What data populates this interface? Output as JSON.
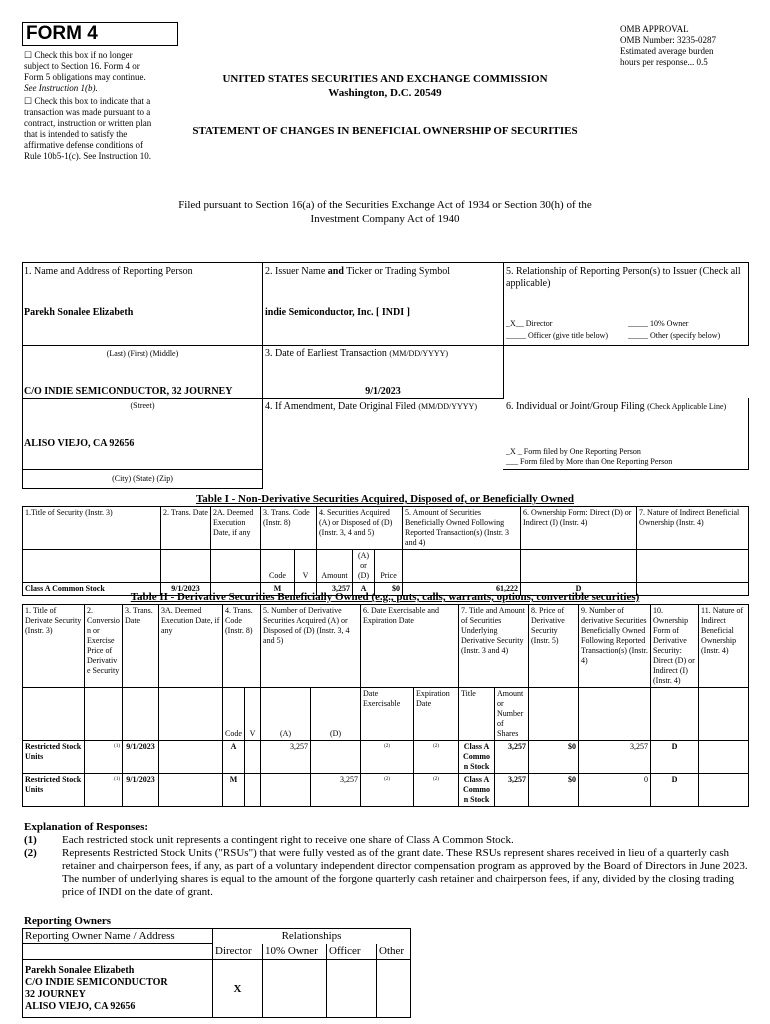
{
  "header": {
    "form_title": "FORM 4",
    "check_16": "Check this box if no longer subject to Section 16. Form 4 or Form 5 obligations may continue.",
    "check_16_see": "See Instruction 1(b).",
    "check_10b5": "Check this box to indicate that a transaction was made pursuant to a contract, instruction or written plan that is intended to satisfy the affirmative defense conditions of Rule 10b5-1(c). See Instruction 10.",
    "omb": [
      "OMB APPROVAL",
      "OMB Number: 3235-0287",
      "Estimated average burden",
      "hours per response... 0.5"
    ],
    "agency": "UNITED STATES SECURITIES AND EXCHANGE COMMISSION",
    "city": "Washington, D.C. 20549",
    "statement": "STATEMENT OF CHANGES IN BENEFICIAL OWNERSHIP OF SECURITIES",
    "filed_1": "Filed pursuant to Section 16(a) of the Securities Exchange Act of 1934 or Section 30(h) of the",
    "filed_2": "Investment Company Act of 1940"
  },
  "reporting": {
    "l1": "1. Name and Address of Reporting Person",
    "name": "Parekh Sonalee Elizabeth",
    "name_hint": "(Last)  (First)  (Middle)",
    "street": "C/O INDIE SEMICONDUCTOR, 32 JOURNEY",
    "street_hint": "(Street)",
    "city": "ALISO VIEJO, CA 92656",
    "city_hint": "(City)  (State)  (Zip)",
    "l2a": "2. Issuer Name ",
    "l2b": "and",
    "l2c": " Ticker or Trading Symbol",
    "issuer": "indie Semiconductor, Inc. [ INDI ]",
    "l3": "3. Date of Earliest Transaction ",
    "l3s": "(MM/DD/YYYY)",
    "earliest": "9/1/2023",
    "l4": "4. If Amendment, Date Original Filed ",
    "l4s": "(MM/DD/YYYY)",
    "l5": "5. Relationship of Reporting Person(s) to Issuer (Check all applicable)",
    "rel_director": "_X__ Director",
    "rel_10": "_____ 10% Owner",
    "rel_officer": "_____ Officer (give title below)",
    "rel_other": "_____ Other (specify below)",
    "l6": "6. Individual or Joint/Group Filing ",
    "l6s": "(Check Applicable Line)",
    "f_one": "_X _ Form filed by One Reporting Person",
    "f_more": "___ Form filed by More than One Reporting Person"
  },
  "table1": {
    "title": "Table I - Non-Derivative Securities Acquired, Disposed of, or Beneficially Owned",
    "headers": [
      "1.Title of Security (Instr. 3)",
      "2. Trans. Date",
      "2A. Deemed Execution Date, if any",
      "3. Trans. Code (Instr. 8)",
      "4. Securities Acquired (A) or Disposed of (D) (Instr. 3, 4 and 5)",
      "5. Amount of Securities Beneficially Owned Following Reported Transaction(s) (Instr. 3 and 4)",
      "6. Ownership Form: Direct (D) or Indirect (I) (Instr. 4)",
      "7. Nature of Indirect Beneficial Ownership (Instr. 4)"
    ],
    "sub": [
      "Code",
      "V",
      "Amount",
      "(A) or (D)",
      "Price"
    ],
    "rows": [
      [
        "Class A Common Stock",
        "9/1/2023",
        "",
        "M",
        "",
        "3,257",
        "A",
        "$0",
        "61,222",
        "D",
        ""
      ]
    ]
  },
  "table2": {
    "title": "Table II - Derivative Securities Beneficially Owned (e.g., puts, calls, warrants, options, convertible securities)",
    "headers": [
      "1. Title of Derivate Security (Instr. 3)",
      "2. Conversion or Exercise Price of Derivative Security",
      "3. Trans. Date",
      "3A. Deemed Execution Date, if any",
      "4. Trans. Code (Instr. 8)",
      "5. Number of Derivative Securities Acquired (A) or Disposed of (D) (Instr. 3, 4 and 5)",
      "6. Date Exercisable and Expiration Date",
      "7. Title and Amount of Securities Underlying Derivative Security (Instr. 3 and 4)",
      "8. Price of Derivative Security (Instr. 5)",
      "9. Number of derivative Securities Beneficially Owned Following Reported Transaction(s) (Instr. 4)",
      "10. Ownership Form of Derivative Security: Direct (D) or Indirect (I) (Instr. 4)",
      "11. Nature of Indirect Beneficial Ownership (Instr. 4)"
    ],
    "sub": [
      "Code",
      "V",
      "(A)",
      "(D)",
      "Date Exercisable",
      "Expiration Date",
      "Title",
      "Amount or Number of Shares"
    ],
    "rows": [
      [
        "Restricted Stock Units",
        "(1)",
        "9/1/2023",
        "",
        "A",
        "",
        "3,257",
        "",
        "(2)",
        "(2)",
        "Class A Common Stock",
        "3,257",
        "$0",
        "3,257",
        "D",
        ""
      ],
      [
        "Restricted Stock Units",
        "(1)",
        "9/1/2023",
        "",
        "M",
        "",
        "",
        "3,257",
        "(2)",
        "(2)",
        "Class A Common Stock",
        "3,257",
        "$0",
        "0",
        "D",
        ""
      ]
    ]
  },
  "explanation": {
    "title": "Explanation of Responses:",
    "items": [
      {
        "n": "(1)",
        "t": "Each restricted stock unit represents a contingent right to receive one share of Class A Common Stock."
      },
      {
        "n": "(2)",
        "t": "Represents Restricted Stock Units (\"RSUs\") that were fully vested as of the grant date. These RSUs represent shares received in lieu of a quarterly cash retainer and chairperson fees, if any, as part of a voluntary independent director compensation program as approved by the Board of Directors in June 2023. The number of underlying shares is equal to the amount of the forgone quarterly cash retainer and chairperson fees, if any, divided by the closing trading price of INDI on the date of grant."
      }
    ]
  },
  "owners": {
    "title": "Reporting Owners",
    "col_name": "Reporting Owner Name / Address",
    "col_rel": "Relationships",
    "cols": [
      "Director",
      "10% Owner",
      "Officer",
      "Other"
    ],
    "rows": [
      {
        "name": [
          "Parekh Sonalee Elizabeth",
          "C/O INDIE SEMICONDUCTOR",
          "32 JOURNEY",
          "ALISO VIEJO, CA 92656"
        ],
        "director": "X",
        "owner10": "",
        "officer": "",
        "other": ""
      }
    ]
  }
}
